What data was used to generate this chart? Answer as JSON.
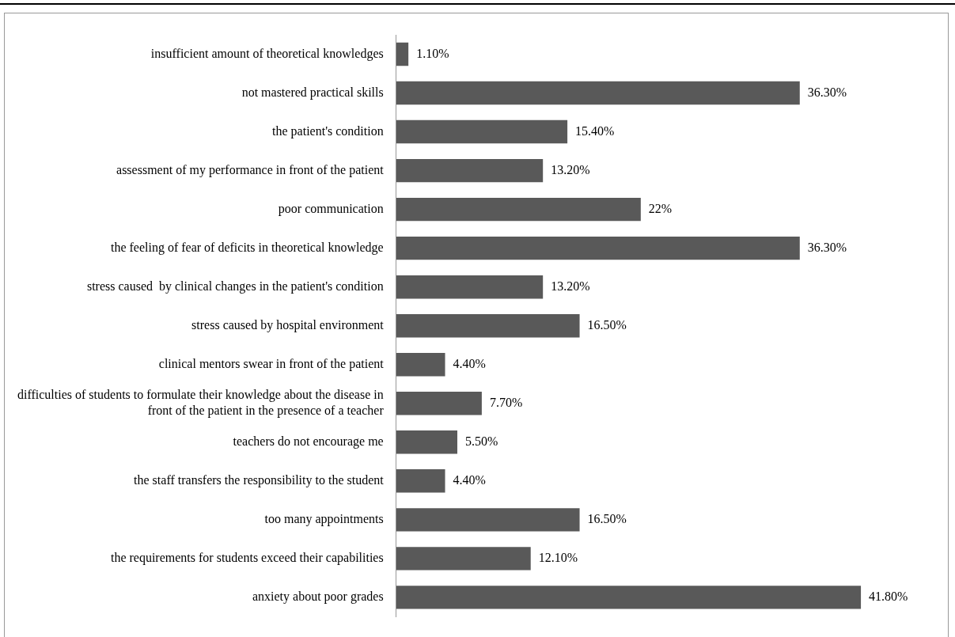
{
  "chart_data": {
    "type": "bar",
    "orientation": "horizontal",
    "categories": [
      "insufficient amount of theoretical knowledges",
      "not mastered practical skills",
      "the patient's condition",
      "assessment of my performance in front of the patient",
      "poor communication",
      "the feeling of fear of deficits in theoretical knowledge",
      "stress caused  by clinical changes in the patient's condition",
      "stress caused by hospital environment",
      "clinical mentors swear in front of the patient",
      "difficulties of students to formulate their knowledge about the disease in front of the patient in the presence of a teacher",
      "teachers do not encourage me",
      "the staff transfers the responsibility to the student",
      "too many appointments",
      "the requirements for students exceed their capabilities",
      "anxiety about poor grades"
    ],
    "values": [
      1.1,
      36.3,
      15.4,
      13.2,
      22,
      36.3,
      13.2,
      16.5,
      4.4,
      7.7,
      5.5,
      4.4,
      16.5,
      12.1,
      41.8
    ],
    "value_labels": [
      "1.10%",
      "36.30%",
      "15.40%",
      "13.20%",
      "22%",
      "36.30%",
      "13.20%",
      "16.50%",
      "4.40%",
      "7.70%",
      "5.50%",
      "4.40%",
      "16.50%",
      "12.10%",
      "41.80%"
    ],
    "color": "#595959"
  }
}
